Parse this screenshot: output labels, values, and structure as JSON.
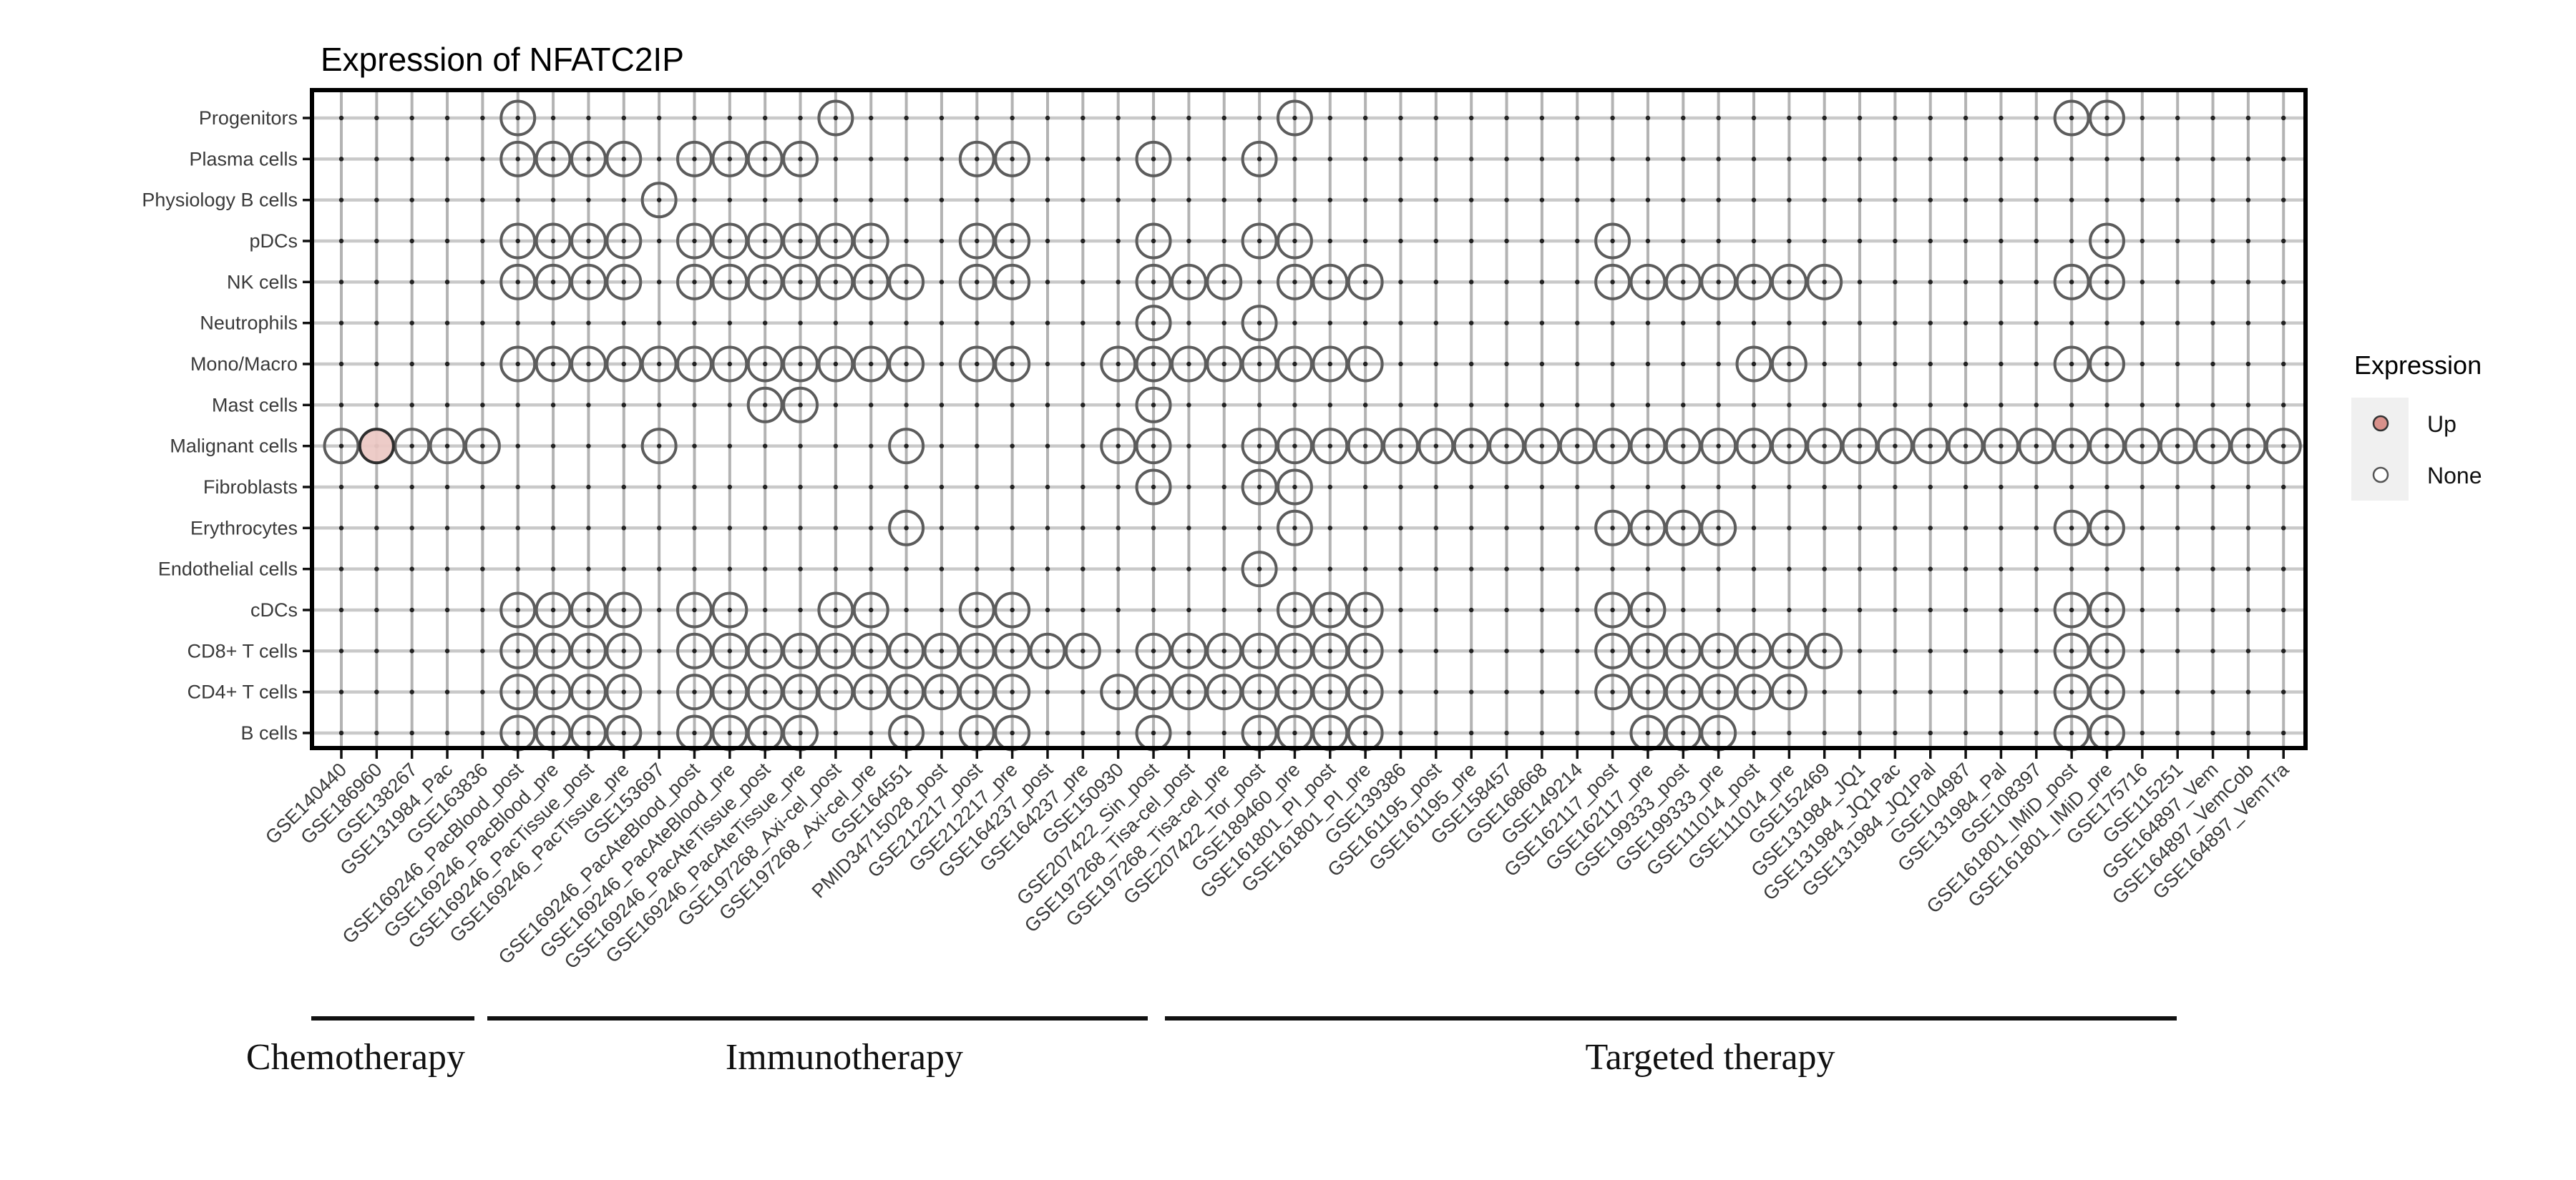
{
  "page": {
    "background": "#ffffff"
  },
  "chart_data": {
    "type": "dot-matrix",
    "title": "Expression of NFATC2IP",
    "gene": "NFATC2IP",
    "legend_position": "right",
    "grid": true,
    "y_categories": [
      "Progenitors",
      "Plasma cells",
      "Physiology B cells",
      "pDCs",
      "NK cells",
      "Neutrophils",
      "Mono/Macro",
      "Mast cells",
      "Malignant cells",
      "Fibroblasts",
      "Erythrocytes",
      "Endothelial cells",
      "cDCs",
      "CD8+ T cells",
      "CD4+ T cells",
      "B cells"
    ],
    "x_categories": [
      "GSE140440",
      "GSE186960",
      "GSE138267",
      "GSE131984_Pac",
      "GSE163836",
      "GSE169246_PacBlood_post",
      "GSE169246_PacBlood_pre",
      "GSE169246_PacTissue_post",
      "GSE169246_PacTissue_pre",
      "GSE153697",
      "GSE169246_PacAteBlood_post",
      "GSE169246_PacAteBlood_pre",
      "GSE169246_PacAteTissue_post",
      "GSE169246_PacAteTissue_pre",
      "GSE197268_Axi-cel_post",
      "GSE197268_Axi-cel_pre",
      "GSE164551",
      "PMID34715028_post",
      "GSE212217_post",
      "GSE212217_pre",
      "GSE164237_post",
      "GSE164237_pre",
      "GSE150930",
      "GSE207422_Sin_post",
      "GSE197268_Tisa-cel_post",
      "GSE197268_Tisa-cel_pre",
      "GSE207422_Tor_post",
      "GSE189460_pre",
      "GSE161801_PI_post",
      "GSE161801_PI_pre",
      "GSE139386",
      "GSE161195_post",
      "GSE161195_pre",
      "GSE158457",
      "GSE168668",
      "GSE149214",
      "GSE162117_post",
      "GSE162117_pre",
      "GSE199333_post",
      "GSE199333_pre",
      "GSE111014_post",
      "GSE111014_pre",
      "GSE152469",
      "GSE131984_JQ1",
      "GSE131984_JQ1Pac",
      "GSE131984_JQ1Pal",
      "GSE104987",
      "GSE131984_Pal",
      "GSE108397",
      "GSE161801_IMiD_post",
      "GSE161801_IMiD_pre",
      "GSE175716",
      "GSE115251",
      "GSE164897_Vem",
      "GSE164897_VemCob",
      "GSE164897_VemTra"
    ],
    "cells_none": {
      "Progenitors": [
        5,
        14,
        27,
        49,
        50
      ],
      "Plasma cells": [
        5,
        6,
        7,
        8,
        10,
        11,
        12,
        13,
        18,
        19,
        23,
        26
      ],
      "Physiology B cells": [
        9
      ],
      "pDCs": [
        5,
        6,
        7,
        8,
        10,
        11,
        12,
        13,
        14,
        15,
        18,
        19,
        23,
        26,
        27,
        36,
        50
      ],
      "NK cells": [
        5,
        6,
        7,
        8,
        10,
        11,
        12,
        13,
        14,
        15,
        16,
        18,
        19,
        23,
        24,
        25,
        27,
        28,
        29,
        36,
        37,
        38,
        39,
        40,
        41,
        42,
        49,
        50
      ],
      "Neutrophils": [
        23,
        26
      ],
      "Mono/Macro": [
        5,
        6,
        7,
        8,
        9,
        10,
        11,
        12,
        13,
        14,
        15,
        16,
        18,
        19,
        22,
        23,
        24,
        25,
        26,
        27,
        28,
        29,
        40,
        41,
        49,
        50
      ],
      "Mast cells": [
        12,
        13,
        23
      ],
      "Malignant cells": [
        0,
        2,
        3,
        4,
        9,
        16,
        22,
        23,
        26,
        27,
        28,
        29,
        30,
        31,
        32,
        33,
        34,
        35,
        36,
        37,
        38,
        39,
        40,
        41,
        42,
        43,
        44,
        45,
        46,
        47,
        48,
        49,
        50,
        51,
        52,
        53,
        54,
        55
      ],
      "Fibroblasts": [
        23,
        26,
        27
      ],
      "Erythrocytes": [
        16,
        27,
        36,
        37,
        38,
        39,
        49,
        50
      ],
      "Endothelial cells": [
        26
      ],
      "cDCs": [
        5,
        6,
        7,
        8,
        10,
        11,
        14,
        15,
        18,
        19,
        27,
        28,
        29,
        36,
        37,
        49,
        50
      ],
      "CD8+ T cells": [
        5,
        6,
        7,
        8,
        10,
        11,
        12,
        13,
        14,
        15,
        16,
        17,
        18,
        19,
        20,
        21,
        23,
        24,
        25,
        26,
        27,
        28,
        29,
        36,
        37,
        38,
        39,
        40,
        41,
        42,
        49,
        50
      ],
      "CD4+ T cells": [
        5,
        6,
        7,
        8,
        10,
        11,
        12,
        13,
        14,
        15,
        16,
        17,
        18,
        19,
        22,
        23,
        24,
        25,
        26,
        27,
        28,
        29,
        36,
        37,
        38,
        39,
        40,
        41,
        49,
        50
      ],
      "B cells": [
        5,
        6,
        7,
        8,
        10,
        11,
        12,
        13,
        16,
        18,
        19,
        23,
        26,
        27,
        28,
        29,
        37,
        38,
        39,
        49,
        50
      ]
    },
    "cells_up": [
      {
        "row": "Malignant cells",
        "column": "GSE186960",
        "col_index": 1
      }
    ],
    "groups": [
      {
        "label": "Chemotherapy",
        "from": "GSE140440",
        "to": "GSE163836"
      },
      {
        "label": "Immunotherapy",
        "from": "GSE169246_PacBlood_post",
        "to": "GSE150930"
      },
      {
        "label": "Targeted therapy",
        "from": "GSE207422_Sin_post",
        "to": "GSE164897_VemTra"
      }
    ]
  },
  "legend": {
    "title": "Expression",
    "items": [
      {
        "label": "Up"
      },
      {
        "label": "None"
      }
    ]
  },
  "colors": {
    "up_fill": "#ecc9c5",
    "up_stroke": "#2e2e2e",
    "none_stroke": "#5c5c5c",
    "legend_up_fill": "#d9918b",
    "legend_none_fill": "#ffffff",
    "legend_key_bg": "#f0f0f0",
    "grid_v": "#b3b3b3",
    "grid_h": "#c9c9c9",
    "dot": "#222222",
    "border": "#000000",
    "axis_text": "#3a3a3a",
    "tick": "#111111"
  }
}
